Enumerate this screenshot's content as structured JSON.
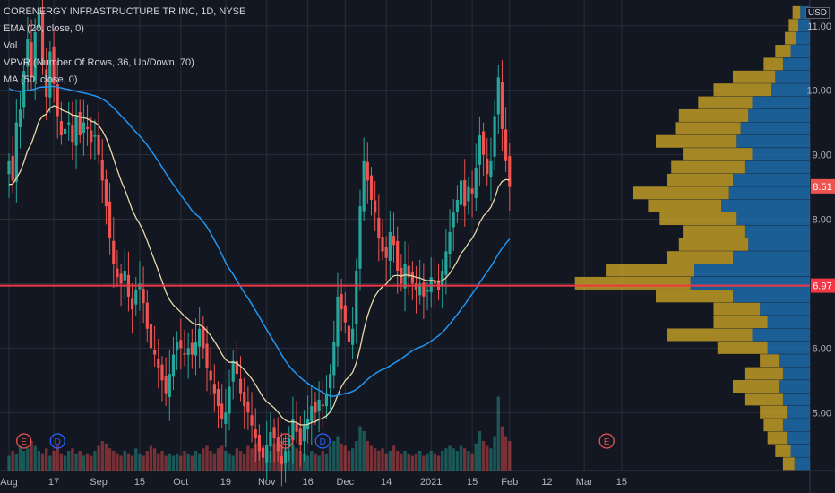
{
  "legend": {
    "title": "CORENERGY INFRASTRUCTURE TR INC, 1D, NYSE",
    "ema": "EMA (20, close, 0)",
    "vol": "Vol",
    "vpvr": "VPVR (Number Of Rows, 36, Up/Down, 70)",
    "ma": "MA (50, close, 0)"
  },
  "currency": "USD",
  "colors": {
    "up": "#26a69a",
    "down": "#ef5350",
    "ema": "#e8d9a8",
    "ma": "#2196f3",
    "hline": "#f23645",
    "vpvr_up": "#1e6fb3",
    "vpvr_down": "#c9a227",
    "grid": "#2a2e39"
  },
  "chart_data": {
    "type": "candlestick",
    "y_ticks": [
      "11.00",
      "10.00",
      "9.00",
      "8.00",
      "7.00",
      "6.00",
      "5.00"
    ],
    "y_tick_values": [
      11,
      10,
      9,
      8,
      7,
      6,
      5
    ],
    "ylim": [
      4.1,
      11.4
    ],
    "x_ticks": [
      "Aug",
      "17",
      "Sep",
      "15",
      "Oct",
      "19",
      "Nov",
      "16",
      "Dec",
      "14",
      "2021",
      "15",
      "Feb",
      "12",
      "Mar",
      "15"
    ],
    "x_tick_index": [
      0,
      12,
      24,
      35,
      46,
      58,
      69,
      80,
      90,
      101,
      113,
      124,
      134,
      144,
      154,
      164
    ],
    "price_labels": [
      {
        "value": 8.51,
        "text": "8.51",
        "color": "#ef5350"
      },
      {
        "value": 6.97,
        "text": "6.97",
        "color": "#f23645"
      }
    ],
    "horizontal_line": 6.97,
    "markers": [
      {
        "index": 4,
        "text": "E"
      },
      {
        "index": 13,
        "text": "D"
      },
      {
        "index": 74,
        "text": "E"
      },
      {
        "index": 84,
        "text": "D"
      },
      {
        "index": 160,
        "text": "E"
      }
    ],
    "closes": [
      8.9,
      8.6,
      9.5,
      9.7,
      10.3,
      10.8,
      10.2,
      10.9,
      11.2,
      10.4,
      9.9,
      10.6,
      10.1,
      9.6,
      9.3,
      9.4,
      9.5,
      9.2,
      9.6,
      9.3,
      9.5,
      9.4,
      9.2,
      9.3,
      9.0,
      8.6,
      8.2,
      7.7,
      7.3,
      7.1,
      7.0,
      7.2,
      6.8,
      6.6,
      6.9,
      7.0,
      6.7,
      6.3,
      6.0,
      5.9,
      5.7,
      5.5,
      5.3,
      5.6,
      5.9,
      6.1,
      6.0,
      5.9,
      6.0,
      5.9,
      6.1,
      6.3,
      6.0,
      5.7,
      5.5,
      5.3,
      5.1,
      4.9,
      5.0,
      5.4,
      5.8,
      5.6,
      5.3,
      5.1,
      5.0,
      4.8,
      4.6,
      4.4,
      4.3,
      4.5,
      4.7,
      4.6,
      4.4,
      4.2,
      4.4,
      4.6,
      4.9,
      4.7,
      4.5,
      4.8,
      4.9,
      5.1,
      5.0,
      5.2,
      5.1,
      5.3,
      5.6,
      6.1,
      6.8,
      6.6,
      6.4,
      6.1,
      6.3,
      7.2,
      8.2,
      8.9,
      8.6,
      8.3,
      8.1,
      7.7,
      7.5,
      7.4,
      7.8,
      7.6,
      7.2,
      7.0,
      7.3,
      7.1,
      7.0,
      6.9,
      7.0,
      6.8,
      6.9,
      7.1,
      7.0,
      6.9,
      7.2,
      7.5,
      7.8,
      8.1,
      8.3,
      8.6,
      8.2,
      8.5,
      8.4,
      8.8,
      9.3,
      9.0,
      8.7,
      8.9,
      9.6,
      10.2,
      9.4,
      8.9,
      8.5
    ],
    "ema20_start": 8.5,
    "ma50_start": 10.05,
    "volumes": [
      0.3,
      0.4,
      0.35,
      0.5,
      0.4,
      0.45,
      0.6,
      0.5,
      0.4,
      0.35,
      0.45,
      0.3,
      0.4,
      0.5,
      0.35,
      0.3,
      0.4,
      0.45,
      0.35,
      0.4,
      0.3,
      0.35,
      0.3,
      0.4,
      0.5,
      0.6,
      0.55,
      0.45,
      0.4,
      0.35,
      0.3,
      0.4,
      0.35,
      0.3,
      0.45,
      0.35,
      0.3,
      0.4,
      0.5,
      0.45,
      0.35,
      0.4,
      0.3,
      0.35,
      0.3,
      0.35,
      0.3,
      0.4,
      0.35,
      0.3,
      0.4,
      0.35,
      0.45,
      0.5,
      0.4,
      0.35,
      0.45,
      0.5,
      0.4,
      0.35,
      0.3,
      0.45,
      0.4,
      0.35,
      0.5,
      0.45,
      0.55,
      0.6,
      0.5,
      0.45,
      0.4,
      0.55,
      0.5,
      0.6,
      0.45,
      0.4,
      0.5,
      0.45,
      0.4,
      0.35,
      0.3,
      0.4,
      0.35,
      0.3,
      0.4,
      0.35,
      0.5,
      0.6,
      0.7,
      0.55,
      0.5,
      0.4,
      0.45,
      0.6,
      0.9,
      0.8,
      0.6,
      0.5,
      0.45,
      0.4,
      0.45,
      0.35,
      0.4,
      0.5,
      0.4,
      0.35,
      0.4,
      0.35,
      0.3,
      0.35,
      0.4,
      0.3,
      0.35,
      0.4,
      0.35,
      0.3,
      0.4,
      0.45,
      0.5,
      0.45,
      0.4,
      0.5,
      0.45,
      0.4,
      0.35,
      0.55,
      0.8,
      0.6,
      0.5,
      0.45,
      0.7,
      1.5,
      0.9,
      0.7,
      0.6
    ],
    "vpvr": [
      {
        "price": 11.2,
        "up": 0.05,
        "down": 0.04
      },
      {
        "price": 11.0,
        "up": 0.06,
        "down": 0.05
      },
      {
        "price": 10.8,
        "up": 0.07,
        "down": 0.06
      },
      {
        "price": 10.6,
        "up": 0.1,
        "down": 0.08
      },
      {
        "price": 10.4,
        "up": 0.14,
        "down": 0.1
      },
      {
        "price": 10.2,
        "up": 0.18,
        "down": 0.22
      },
      {
        "price": 10.0,
        "up": 0.2,
        "down": 0.3
      },
      {
        "price": 9.8,
        "up": 0.3,
        "down": 0.28
      },
      {
        "price": 9.6,
        "up": 0.32,
        "down": 0.36
      },
      {
        "price": 9.4,
        "up": 0.36,
        "down": 0.34
      },
      {
        "price": 9.2,
        "up": 0.38,
        "down": 0.42
      },
      {
        "price": 9.0,
        "up": 0.3,
        "down": 0.36
      },
      {
        "price": 8.8,
        "up": 0.34,
        "down": 0.38
      },
      {
        "price": 8.6,
        "up": 0.4,
        "down": 0.34
      },
      {
        "price": 8.4,
        "up": 0.42,
        "down": 0.5
      },
      {
        "price": 8.2,
        "up": 0.46,
        "down": 0.38
      },
      {
        "price": 8.0,
        "up": 0.38,
        "down": 0.4
      },
      {
        "price": 7.8,
        "up": 0.34,
        "down": 0.32
      },
      {
        "price": 7.6,
        "up": 0.32,
        "down": 0.36
      },
      {
        "price": 7.4,
        "up": 0.4,
        "down": 0.34
      },
      {
        "price": 7.2,
        "up": 0.6,
        "down": 0.46
      },
      {
        "price": 7.0,
        "up": 0.62,
        "down": 0.6
      },
      {
        "price": 6.8,
        "up": 0.4,
        "down": 0.4
      },
      {
        "price": 6.6,
        "up": 0.26,
        "down": 0.24
      },
      {
        "price": 6.4,
        "up": 0.22,
        "down": 0.28
      },
      {
        "price": 6.2,
        "up": 0.3,
        "down": 0.44
      },
      {
        "price": 6.0,
        "up": 0.22,
        "down": 0.26
      },
      {
        "price": 5.8,
        "up": 0.16,
        "down": 0.1
      },
      {
        "price": 5.6,
        "up": 0.14,
        "down": 0.2
      },
      {
        "price": 5.4,
        "up": 0.16,
        "down": 0.24
      },
      {
        "price": 5.2,
        "up": 0.14,
        "down": 0.2
      },
      {
        "price": 5.0,
        "up": 0.12,
        "down": 0.14
      },
      {
        "price": 4.8,
        "up": 0.14,
        "down": 0.1
      },
      {
        "price": 4.6,
        "up": 0.12,
        "down": 0.1
      },
      {
        "price": 4.4,
        "up": 0.1,
        "down": 0.08
      },
      {
        "price": 4.2,
        "up": 0.08,
        "down": 0.06
      }
    ]
  }
}
